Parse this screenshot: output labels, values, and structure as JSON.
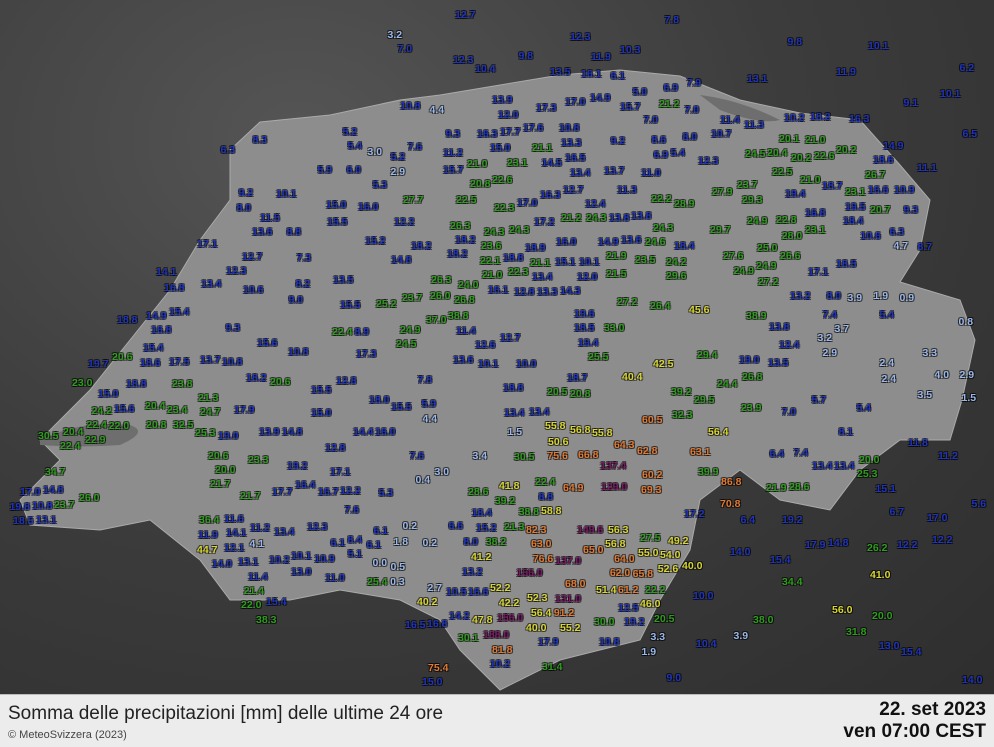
{
  "footer": {
    "title": "Somma delle precipitazioni [mm] delle ultime 24 ore",
    "copyright": "© MeteoSvizzera (2023)",
    "date": "22. set 2023",
    "time": "ven 07:00 CEST"
  },
  "color_scale": [
    {
      "max": 5,
      "color": "#9bb8ea"
    },
    {
      "max": 20,
      "color": "#1f35c0"
    },
    {
      "max": 40,
      "color": "#2f9e1e"
    },
    {
      "max": 60,
      "color": "#d9d734"
    },
    {
      "max": 100,
      "color": "#e27a32"
    },
    {
      "max": 9999,
      "color": "#7a1a66"
    }
  ],
  "stations": [
    "3.2",
    "12.7",
    "7.0",
    "7.8",
    "12.3",
    "11.9",
    "10.3",
    "9.8",
    "10.1",
    "6.2",
    "12.3",
    "10.4",
    "9.8",
    "13.5",
    "16.1",
    "6.1",
    "5.0",
    "6.9",
    "7.9",
    "13.1",
    "11.9",
    "10.1",
    "9.1",
    "10.8",
    "4.4",
    "13.9",
    "12.0",
    "17.3",
    "17.0",
    "14.9",
    "15.7",
    "21.2",
    "7.0",
    "7.0",
    "11.4",
    "11.3",
    "10.2",
    "18.2",
    "16.3",
    "6.5",
    "8.3",
    "5.2",
    "5.4",
    "3.0",
    "9.3",
    "16.3",
    "17.7",
    "17.6",
    "10.8",
    "13.3",
    "9.2",
    "8.6",
    "8.0",
    "10.7",
    "20.1",
    "21.0",
    "20.2",
    "14.9",
    "6.3",
    "7.6",
    "5.2",
    "11.2",
    "15.0",
    "16.5",
    "14.5",
    "6.9",
    "5.4",
    "24.5",
    "20.4",
    "22.6",
    "20.2",
    "18.6",
    "11.1",
    "5.9",
    "6.0",
    "2.9",
    "15.7",
    "21.0",
    "23.1",
    "21.1",
    "13.4",
    "13.7",
    "11.0",
    "12.3",
    "22.5",
    "21.0",
    "26.7",
    "10.9",
    "5.3",
    "9.2",
    "10.1",
    "8.0",
    "27.7",
    "20.8",
    "22.6",
    "22.5",
    "22.3",
    "17.0",
    "16.3",
    "12.7",
    "12.4",
    "11.3",
    "27.9",
    "23.7",
    "29.3",
    "19.4",
    "18.7",
    "23.1",
    "16.6",
    "20.7",
    "9.3",
    "19.5",
    "15.0",
    "16.0",
    "12.2",
    "15.5",
    "11.5",
    "13.6",
    "8.8",
    "26.3",
    "24.3",
    "24.3",
    "18.2",
    "23.6",
    "17.2",
    "21.2",
    "24.3",
    "13.8",
    "13.8",
    "28.9",
    "22.2",
    "24.3",
    "29.7",
    "24.9",
    "22.8",
    "16.8",
    "18.4",
    "23.1",
    "28.0",
    "10.6",
    "6.3",
    "8.7",
    "4.7",
    "17.1",
    "15.2",
    "18.2",
    "18.2",
    "18.9",
    "16.0",
    "14.9",
    "13.6",
    "24.6",
    "18.4",
    "27.6",
    "25.0",
    "26.6",
    "12.7",
    "7.3",
    "14.8",
    "22.1",
    "18.8",
    "21.1",
    "15.1",
    "10.1",
    "21.9",
    "23.5",
    "24.2",
    "24.9",
    "17.1",
    "18.5",
    "14.1",
    "12.3",
    "13.4",
    "16.8",
    "10.6",
    "8.2",
    "13.5",
    "26.3",
    "21.0",
    "22.3",
    "13.4",
    "12.0",
    "21.5",
    "29.6",
    "24.9",
    "27.2",
    "26.0",
    "24.0",
    "26.8",
    "16.1",
    "12.8",
    "13.3",
    "14.3",
    "23.7",
    "9.0",
    "15.5",
    "25.2",
    "27.2",
    "26.4",
    "45.6",
    "13.2",
    "8.0",
    "3.9",
    "1.9",
    "0.9",
    "5.4",
    "18.8",
    "14.9",
    "15.4",
    "16.8",
    "9.3",
    "22.4",
    "8.9",
    "37.0",
    "38.8",
    "24.9",
    "24.5",
    "11.4",
    "12.7",
    "19.6",
    "18.5",
    "33.0",
    "38.9",
    "7.4",
    "3.7",
    "13.8",
    "0.8",
    "15.4",
    "15.6",
    "10.8",
    "12.6",
    "19.4",
    "12.4",
    "3.2",
    "2.9",
    "19.7",
    "20.6",
    "18.6",
    "17.5",
    "13.7",
    "10.8",
    "17.3",
    "13.6",
    "10.1",
    "10.0",
    "25.5",
    "42.5",
    "29.4",
    "19.0",
    "13.5",
    "2.4",
    "3.3",
    "23.0",
    "18.8",
    "23.8",
    "18.2",
    "20.6",
    "12.8",
    "7.8",
    "40.4",
    "39.2",
    "24.4",
    "26.8",
    "2.4",
    "4.0",
    "2.9",
    "15.0",
    "15.6",
    "15.5",
    "18.8",
    "18.7",
    "20.5",
    "20.8",
    "29.5",
    "32.3",
    "23.9",
    "7.0",
    "5.7",
    "5.4",
    "3.5",
    "1.5",
    "24.2",
    "20.4",
    "23.4",
    "32.5",
    "21.3",
    "24.7",
    "17.9",
    "15.0",
    "18.0",
    "15.5",
    "5.9",
    "4.4",
    "13.4",
    "13.4",
    "55.8",
    "60.5",
    "56.4",
    "22.4",
    "22.0",
    "20.8",
    "25.3",
    "19.0",
    "13.9",
    "14.8",
    "12.8",
    "14.4",
    "16.0",
    "1.5",
    "50.6",
    "56.8",
    "55.8",
    "64.3",
    "62.8",
    "8.1",
    "30.5",
    "20.4",
    "22.4",
    "22.9",
    "19.2",
    "20.6",
    "20.0",
    "23.3",
    "7.6",
    "3.4",
    "30.5",
    "75.6",
    "66.8",
    "137.4",
    "63.1",
    "6.4",
    "7.4",
    "13.4",
    "13.4",
    "20.0",
    "25.3",
    "11.8",
    "11.2",
    "34.7",
    "21.7",
    "17.1",
    "0.4",
    "3.0",
    "41.8",
    "22.4",
    "8.8",
    "64.9",
    "129.0",
    "69.3",
    "60.2",
    "39.9",
    "86.8",
    "21.9",
    "28.6",
    "15.1",
    "17.0",
    "14.8",
    "23.7",
    "26.0",
    "10.8",
    "19.8",
    "18.5",
    "13.1",
    "21.7",
    "17.7",
    "16.4",
    "16.7",
    "12.2",
    "5.3",
    "28.6",
    "39.2",
    "38.8",
    "58.8",
    "70.8",
    "36.4",
    "11.6",
    "11.9",
    "14.1",
    "11.2",
    "13.4",
    "12.3",
    "7.6",
    "18.4",
    "15.2",
    "21.3",
    "17.2",
    "6.4",
    "19.2",
    "6.7",
    "17.0",
    "5.6",
    "12.1",
    "44.7",
    "4.1",
    "6.1",
    "8.4",
    "6.1",
    "1.8",
    "0.2",
    "0.2",
    "6.6",
    "8.0",
    "38.2",
    "41.2",
    "82.3",
    "63.0",
    "76.6",
    "149.6",
    "56.3",
    "56.8",
    "27.5",
    "49.2",
    "55.0",
    "54.0",
    "65.0",
    "64.0",
    "137.0",
    "156.0",
    "68.0",
    "62.0",
    "65.8",
    "52.6",
    "40.0",
    "14.0",
    "15.4",
    "17.9",
    "14.8",
    "26.2",
    "12.2",
    "12.2",
    "14.0",
    "13.1",
    "10.2",
    "10.1",
    "10.9",
    "5.1",
    "6.1",
    "0.0",
    "0.5",
    "13.2",
    "11.4",
    "13.0",
    "11.0",
    "25.4",
    "0.3",
    "21.4",
    "22.0",
    "15.4",
    "2.7",
    "10.5",
    "16.6",
    "52.2",
    "52.3",
    "131.0",
    "91.2",
    "51.4",
    "61.2",
    "22.2",
    "46.0",
    "12.5",
    "10.0",
    "34.4",
    "41.0",
    "42.2",
    "40.2",
    "38.3",
    "16.5",
    "16.8",
    "14.2",
    "47.8",
    "156.0",
    "40.0",
    "56.4",
    "55.2",
    "30.0",
    "19.2",
    "20.5",
    "38.0",
    "56.0",
    "20.0",
    "31.8",
    "30.1",
    "188.0",
    "81.8",
    "17.9",
    "3.3",
    "10.4",
    "3.9",
    "10.2",
    "31.4",
    "1.9",
    "10.8",
    "13.0",
    "15.4",
    "75.4",
    "15.0",
    "14.0",
    "9.0"
  ]
}
